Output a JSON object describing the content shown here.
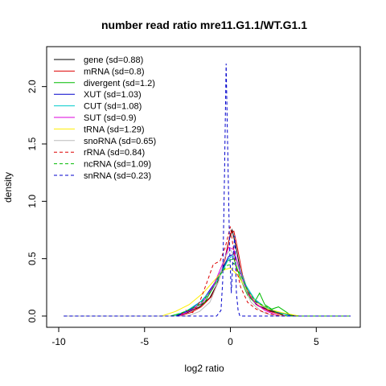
{
  "chart_data": {
    "type": "line",
    "title": "number read ratio mre11.G1.1/WT.G1.1",
    "xlabel": "log2 ratio",
    "ylabel": "density",
    "xlim": [
      -10,
      7
    ],
    "ylim": [
      0,
      2.25
    ],
    "xticks": [
      -10,
      -5,
      0,
      5
    ],
    "yticks": [
      0.0,
      0.5,
      1.0,
      1.5,
      2.0
    ],
    "xtick_labels": [
      "-10",
      "-5",
      "0",
      "5"
    ],
    "ytick_labels": [
      "0.0",
      "0.5",
      "1.0",
      "1.5",
      "2.0"
    ],
    "grid": false,
    "legend_position": "top-left",
    "series": [
      {
        "name": "gene (sd=0.88)",
        "color": "#000000",
        "dash": "solid",
        "x": [
          -9.7,
          -3.2,
          -2.5,
          -1.8,
          -1.2,
          -0.8,
          -0.4,
          -0.1,
          0.1,
          0.3,
          0.6,
          1.0,
          1.5,
          2.2,
          3.0,
          4.0,
          7.0
        ],
        "y": [
          0.0,
          0.0,
          0.03,
          0.08,
          0.16,
          0.27,
          0.45,
          0.65,
          0.75,
          0.62,
          0.38,
          0.2,
          0.1,
          0.05,
          0.02,
          0.0,
          0.0
        ]
      },
      {
        "name": "mRNA (sd=0.8)",
        "color": "#dd0000",
        "dash": "solid",
        "x": [
          -9.7,
          -3.0,
          -2.3,
          -1.7,
          -1.1,
          -0.7,
          -0.3,
          0.0,
          0.2,
          0.4,
          0.7,
          1.1,
          1.6,
          2.3,
          3.2,
          7.0
        ],
        "y": [
          0.0,
          0.0,
          0.03,
          0.08,
          0.17,
          0.3,
          0.5,
          0.72,
          0.74,
          0.6,
          0.36,
          0.18,
          0.09,
          0.04,
          0.0,
          0.0
        ]
      },
      {
        "name": "divergent (sd=1.2)",
        "color": "#00bb00",
        "dash": "solid",
        "x": [
          -9.7,
          -3.5,
          -2.5,
          -1.5,
          -0.8,
          -0.2,
          0.2,
          0.6,
          1.0,
          1.4,
          1.7,
          2.0,
          2.4,
          2.8,
          3.2,
          3.6,
          7.0
        ],
        "y": [
          0.0,
          0.0,
          0.04,
          0.12,
          0.3,
          0.48,
          0.5,
          0.32,
          0.18,
          0.12,
          0.2,
          0.1,
          0.06,
          0.08,
          0.04,
          0.0,
          0.0
        ]
      },
      {
        "name": "XUT (sd=1.03)",
        "color": "#0000cc",
        "dash": "solid",
        "x": [
          -9.7,
          -3.2,
          -2.4,
          -1.6,
          -1.0,
          -0.5,
          -0.1,
          0.2,
          0.5,
          0.9,
          1.4,
          2.0,
          2.8,
          3.6,
          7.0
        ],
        "y": [
          0.0,
          0.0,
          0.05,
          0.14,
          0.27,
          0.4,
          0.52,
          0.54,
          0.42,
          0.25,
          0.14,
          0.07,
          0.03,
          0.0,
          0.0
        ]
      },
      {
        "name": "CUT (sd=1.08)",
        "color": "#00cccc",
        "dash": "solid",
        "x": [
          -9.7,
          -3.3,
          -2.5,
          -1.7,
          -1.0,
          -0.5,
          -0.1,
          0.2,
          0.5,
          0.9,
          1.4,
          2.0,
          2.7,
          3.5,
          7.0
        ],
        "y": [
          0.0,
          0.0,
          0.05,
          0.13,
          0.25,
          0.38,
          0.5,
          0.53,
          0.43,
          0.27,
          0.15,
          0.08,
          0.04,
          0.0,
          0.0
        ]
      },
      {
        "name": "SUT (sd=0.9)",
        "color": "#dd00dd",
        "dash": "solid",
        "x": [
          -9.7,
          -3.0,
          -2.3,
          -1.6,
          -1.0,
          -0.5,
          -0.1,
          0.2,
          0.5,
          0.9,
          1.4,
          2.0,
          2.8,
          7.0
        ],
        "y": [
          0.0,
          0.0,
          0.05,
          0.12,
          0.26,
          0.44,
          0.6,
          0.58,
          0.42,
          0.24,
          0.12,
          0.05,
          0.0,
          0.0
        ]
      },
      {
        "name": "tRNA (sd=1.29)",
        "color": "#ffee00",
        "dash": "solid",
        "x": [
          -9.7,
          -4.0,
          -3.2,
          -2.4,
          -1.6,
          -1.0,
          -0.4,
          0.0,
          0.4,
          0.9,
          1.5,
          2.2,
          3.0,
          4.0,
          7.0
        ],
        "y": [
          0.0,
          0.0,
          0.04,
          0.1,
          0.2,
          0.3,
          0.4,
          0.42,
          0.36,
          0.24,
          0.12,
          0.06,
          0.03,
          0.0,
          0.0
        ]
      },
      {
        "name": "snoRNA (sd=0.65)",
        "color": "#bbbbbb",
        "dash": "solid",
        "x": [
          -9.7,
          -2.5,
          -1.8,
          -1.2,
          -0.7,
          -0.3,
          0.0,
          0.3,
          0.7,
          1.2,
          1.8,
          2.5,
          7.0
        ],
        "y": [
          0.0,
          0.0,
          0.04,
          0.12,
          0.3,
          0.52,
          0.58,
          0.5,
          0.3,
          0.12,
          0.04,
          0.0,
          0.0
        ]
      },
      {
        "name": "rRNA (sd=0.84)",
        "color": "#dd0000",
        "dash": "dashed",
        "x": [
          -9.7,
          -3.0,
          -2.6,
          -2.2,
          -1.8,
          -1.4,
          -1.0,
          -0.6,
          -0.3,
          0.0,
          0.3,
          0.6,
          1.0,
          1.5,
          2.2,
          3.0,
          7.0
        ],
        "y": [
          0.0,
          0.0,
          0.05,
          0.03,
          0.12,
          0.28,
          0.45,
          0.48,
          0.6,
          0.78,
          0.45,
          0.25,
          0.12,
          0.06,
          0.02,
          0.0,
          0.0
        ]
      },
      {
        "name": "ncRNA (sd=1.09)",
        "color": "#00bb00",
        "dash": "dashed",
        "x": [
          -9.7,
          -3.4,
          -2.6,
          -1.8,
          -1.1,
          -0.6,
          -0.2,
          0.2,
          0.6,
          1.0,
          1.5,
          2.1,
          2.7,
          3.3,
          7.0
        ],
        "y": [
          0.0,
          0.0,
          0.04,
          0.1,
          0.22,
          0.36,
          0.44,
          0.46,
          0.36,
          0.22,
          0.12,
          0.08,
          0.03,
          0.0,
          0.0
        ]
      },
      {
        "name": "snRNA (sd=0.23)",
        "color": "#0000cc",
        "dash": "dashed",
        "x": [
          -9.7,
          -0.8,
          -0.55,
          -0.45,
          -0.35,
          -0.25,
          -0.15,
          -0.05,
          0.05,
          0.15,
          0.25,
          0.35,
          0.45,
          0.55,
          0.8,
          7.0
        ],
        "y": [
          0.0,
          0.0,
          0.05,
          0.3,
          1.2,
          2.2,
          1.4,
          0.6,
          0.2,
          0.5,
          0.7,
          0.2,
          0.05,
          0.0,
          0.0,
          0.0
        ]
      }
    ]
  }
}
